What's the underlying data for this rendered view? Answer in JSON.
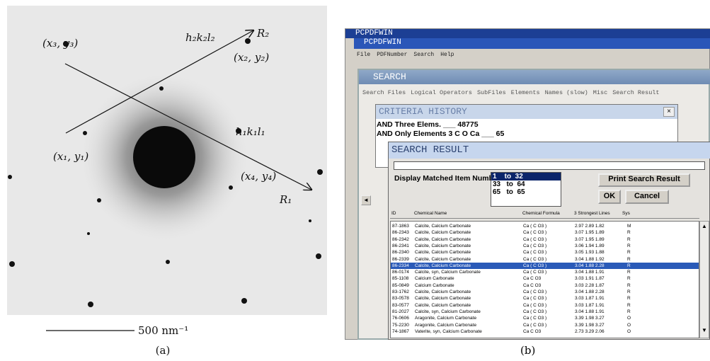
{
  "panel_a": {
    "labels": {
      "x3y3": "(x₃, y₃)",
      "h2k2l2": "h₂k₂l₂",
      "r2": "R₂",
      "x2y2": "(x₂, y₂)",
      "h1k1l1": "h₁k₁l₁",
      "x1y1": "(x₁, y₁)",
      "x4y4": "(x₄, y₄)",
      "r1": "R₁"
    },
    "scale_bar": "500 nm⁻¹",
    "caption": "(a)"
  },
  "panel_b": {
    "caption": "(b)",
    "app_titles": [
      "PCPDFWIN",
      "PCPDFWIN"
    ],
    "app_menu": [
      "File",
      "PDFNumber",
      "Search",
      "Help"
    ],
    "search_title": "SEARCH",
    "search_menu": [
      "Search Files",
      "Logical Operators",
      "SubFiles",
      "Elements",
      "Names (slow)",
      "Misc",
      "Search Result"
    ],
    "criteria_title": "CRITERIA HISTORY",
    "criteria_lines": [
      "AND  Three Elems. ___ 48775",
      "AND  Only Elements 3  C O Ca ___ 65"
    ],
    "result_title": "SEARCH RESULT",
    "display_label": "Display Matched Item Number:",
    "ranges": [
      "1    to  32",
      "33   to  64",
      "65   to  65"
    ],
    "buttons": {
      "print": "Print Search Result",
      "ok": "OK",
      "cancel": "Cancel"
    },
    "columns": [
      "ID",
      "Chemical Name",
      "Chemical Formula",
      "3 Strongest Lines",
      "Sys"
    ],
    "selected_row": 6,
    "rows": [
      [
        "87-1863",
        "Calcite, Calcium Carbonate",
        "Ca ( C O3 )",
        "2.97 2.89 1.82",
        "M"
      ],
      [
        "86-2343",
        "Calcite, Calcium Carbonate",
        "Ca ( C O3 )",
        "3.07 1.95 1.89",
        "R"
      ],
      [
        "86-2342",
        "Calcite, Calcium Carbonate",
        "Ca ( C O3 )",
        "3.07 1.95 1.89",
        "R"
      ],
      [
        "86-2341",
        "Calcite, Calcium Carbonate",
        "Ca ( C O3 )",
        "3.06 1.94 1.89",
        "R"
      ],
      [
        "86-2340",
        "Calcite, Calcium Carbonate",
        "Ca ( C O3 )",
        "3.05 1.93 1.88",
        "R"
      ],
      [
        "86-2339",
        "Calcite, Calcium Carbonate",
        "Ca ( C O3 )",
        "3.04 1.88 1.92",
        "R"
      ],
      [
        "86-2334",
        "Calcite, Calcium Carbonate",
        "Ca ( C O3 )",
        "3.04 1.88 2.28",
        "R"
      ],
      [
        "86-0174",
        "Calcite, syn, Calcium Carbonate",
        "Ca ( C O3 )",
        "3.04 1.88 1.91",
        "R"
      ],
      [
        "85-1108",
        "Calcium Carbonate",
        "Ca C O3",
        "3.03 1.91 1.87",
        "R"
      ],
      [
        "85-0849",
        "Calcium Carbonate",
        "Ca C O3",
        "3.03 2.28 1.87",
        "R"
      ],
      [
        "83-1762",
        "Calcite, Calcium Carbonate",
        "Ca ( C O3 )",
        "3.04 1.88 2.28",
        "R"
      ],
      [
        "83-0578",
        "Calcite, Calcium Carbonate",
        "Ca ( C O3 )",
        "3.03 1.87 1.91",
        "R"
      ],
      [
        "83-0577",
        "Calcite, Calcium Carbonate",
        "Ca ( C O3 )",
        "3.03 1.87 1.91",
        "R"
      ],
      [
        "81-2027",
        "Calcite, syn, Calcium Carbonate",
        "Ca ( C O3 )",
        "3.04 1.88 1.91",
        "R"
      ],
      [
        "76-0606",
        "Aragonite, Calcium Carbonate",
        "Ca ( C O3 )",
        "3.39 1.98 3.27",
        "O"
      ],
      [
        "75-2230",
        "Aragonite, Calcium Carbonate",
        "Ca ( C O3 )",
        "3.39 1.98 3.27",
        "O"
      ],
      [
        "74-1867",
        "Vaterite, syn, Calcium Carbonate",
        "Ca C O3",
        "2.73 3.29 2.06",
        "O"
      ]
    ]
  }
}
